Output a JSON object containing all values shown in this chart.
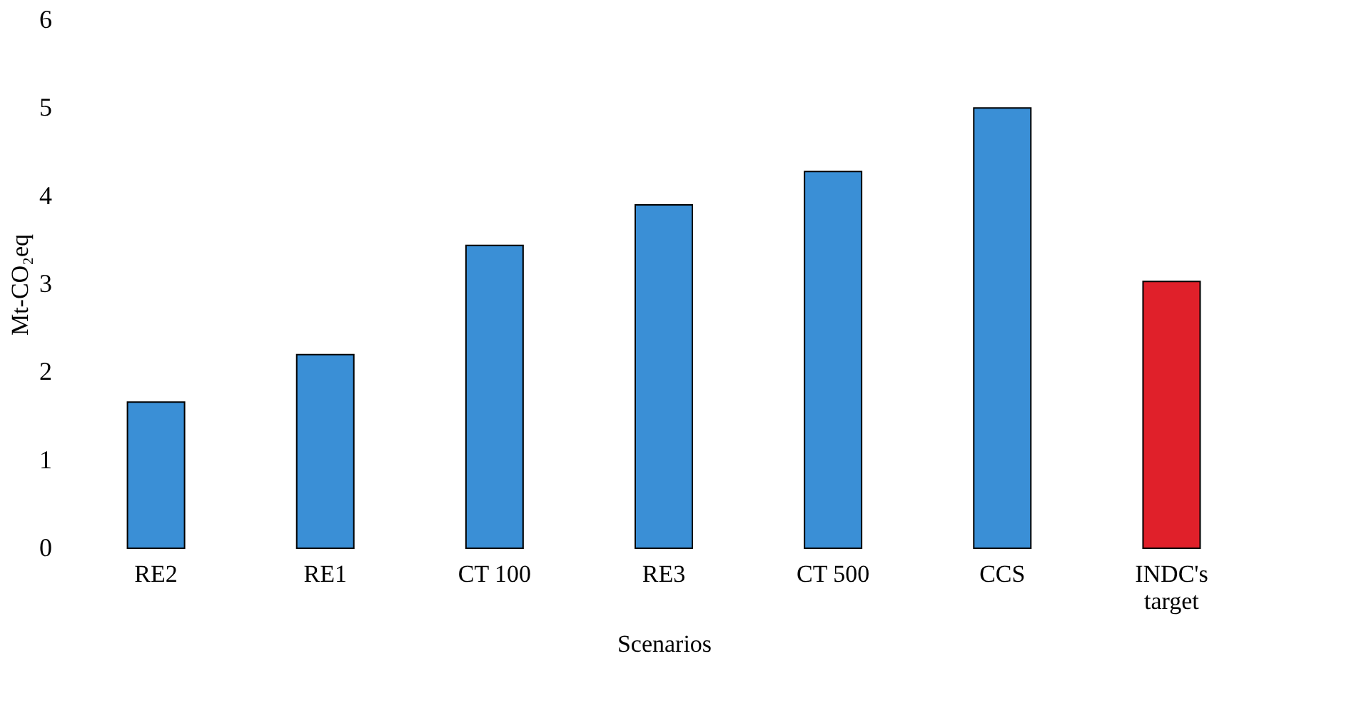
{
  "chart_data": {
    "type": "bar",
    "xlabel": "Scenarios",
    "ylabel": "Mt-CO₂eq",
    "categories": [
      "RE2",
      "RE1",
      "CT 100",
      "RE3",
      "CT 500",
      "CCS",
      "INDC's target"
    ],
    "values": [
      1.66,
      2.2,
      3.44,
      3.9,
      4.28,
      5.0,
      3.03
    ],
    "colors": [
      "#3a8fd6",
      "#3a8fd6",
      "#3a8fd6",
      "#3a8fd6",
      "#3a8fd6",
      "#3a8fd6",
      "#e0202a"
    ],
    "ylim": [
      0,
      6
    ],
    "yticks": [
      0,
      1,
      2,
      3,
      4,
      5,
      6
    ],
    "grid": false
  }
}
